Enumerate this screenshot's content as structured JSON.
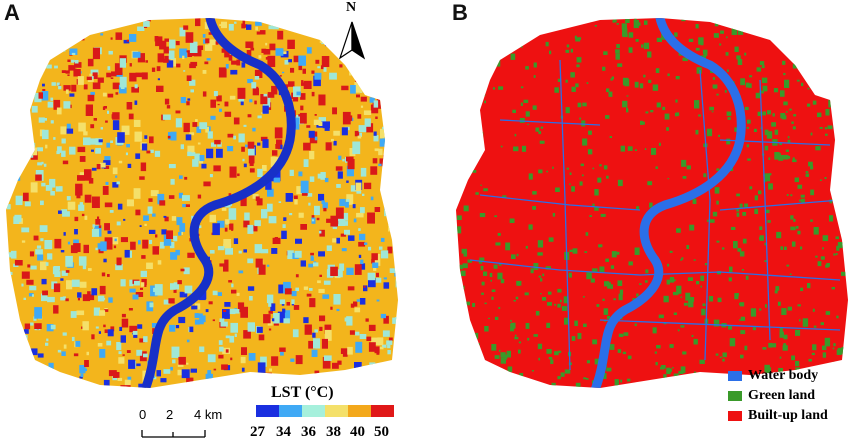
{
  "panels": {
    "a_label": "A",
    "b_label": "B"
  },
  "north_arrow": {
    "letter": "N"
  },
  "scale_bar": {
    "ticks": [
      "0",
      "2",
      "4 km"
    ]
  },
  "lst_legend": {
    "title": "LST (°C)",
    "ticks": [
      "27",
      "34",
      "36",
      "38",
      "40",
      "50"
    ],
    "colors": [
      "#1a2fe0",
      "#3fa9f5",
      "#a6f0dc",
      "#f4e06a",
      "#f3a81b",
      "#e01818"
    ]
  },
  "landuse_legend": {
    "items": [
      {
        "label": "Water body",
        "color": "#2b6fe8"
      },
      {
        "label": "Green land",
        "color": "#3a9a2a"
      },
      {
        "label": "Built-up land",
        "color": "#ee1111"
      }
    ]
  },
  "colors": {
    "river": "#1730c8",
    "river_b": "#2b6fe8",
    "heat_base": "#f3b51c",
    "cool": "#9fe7d8",
    "hot": "#d91919",
    "built_up": "#ee1111",
    "green": "#3a9a2a"
  }
}
